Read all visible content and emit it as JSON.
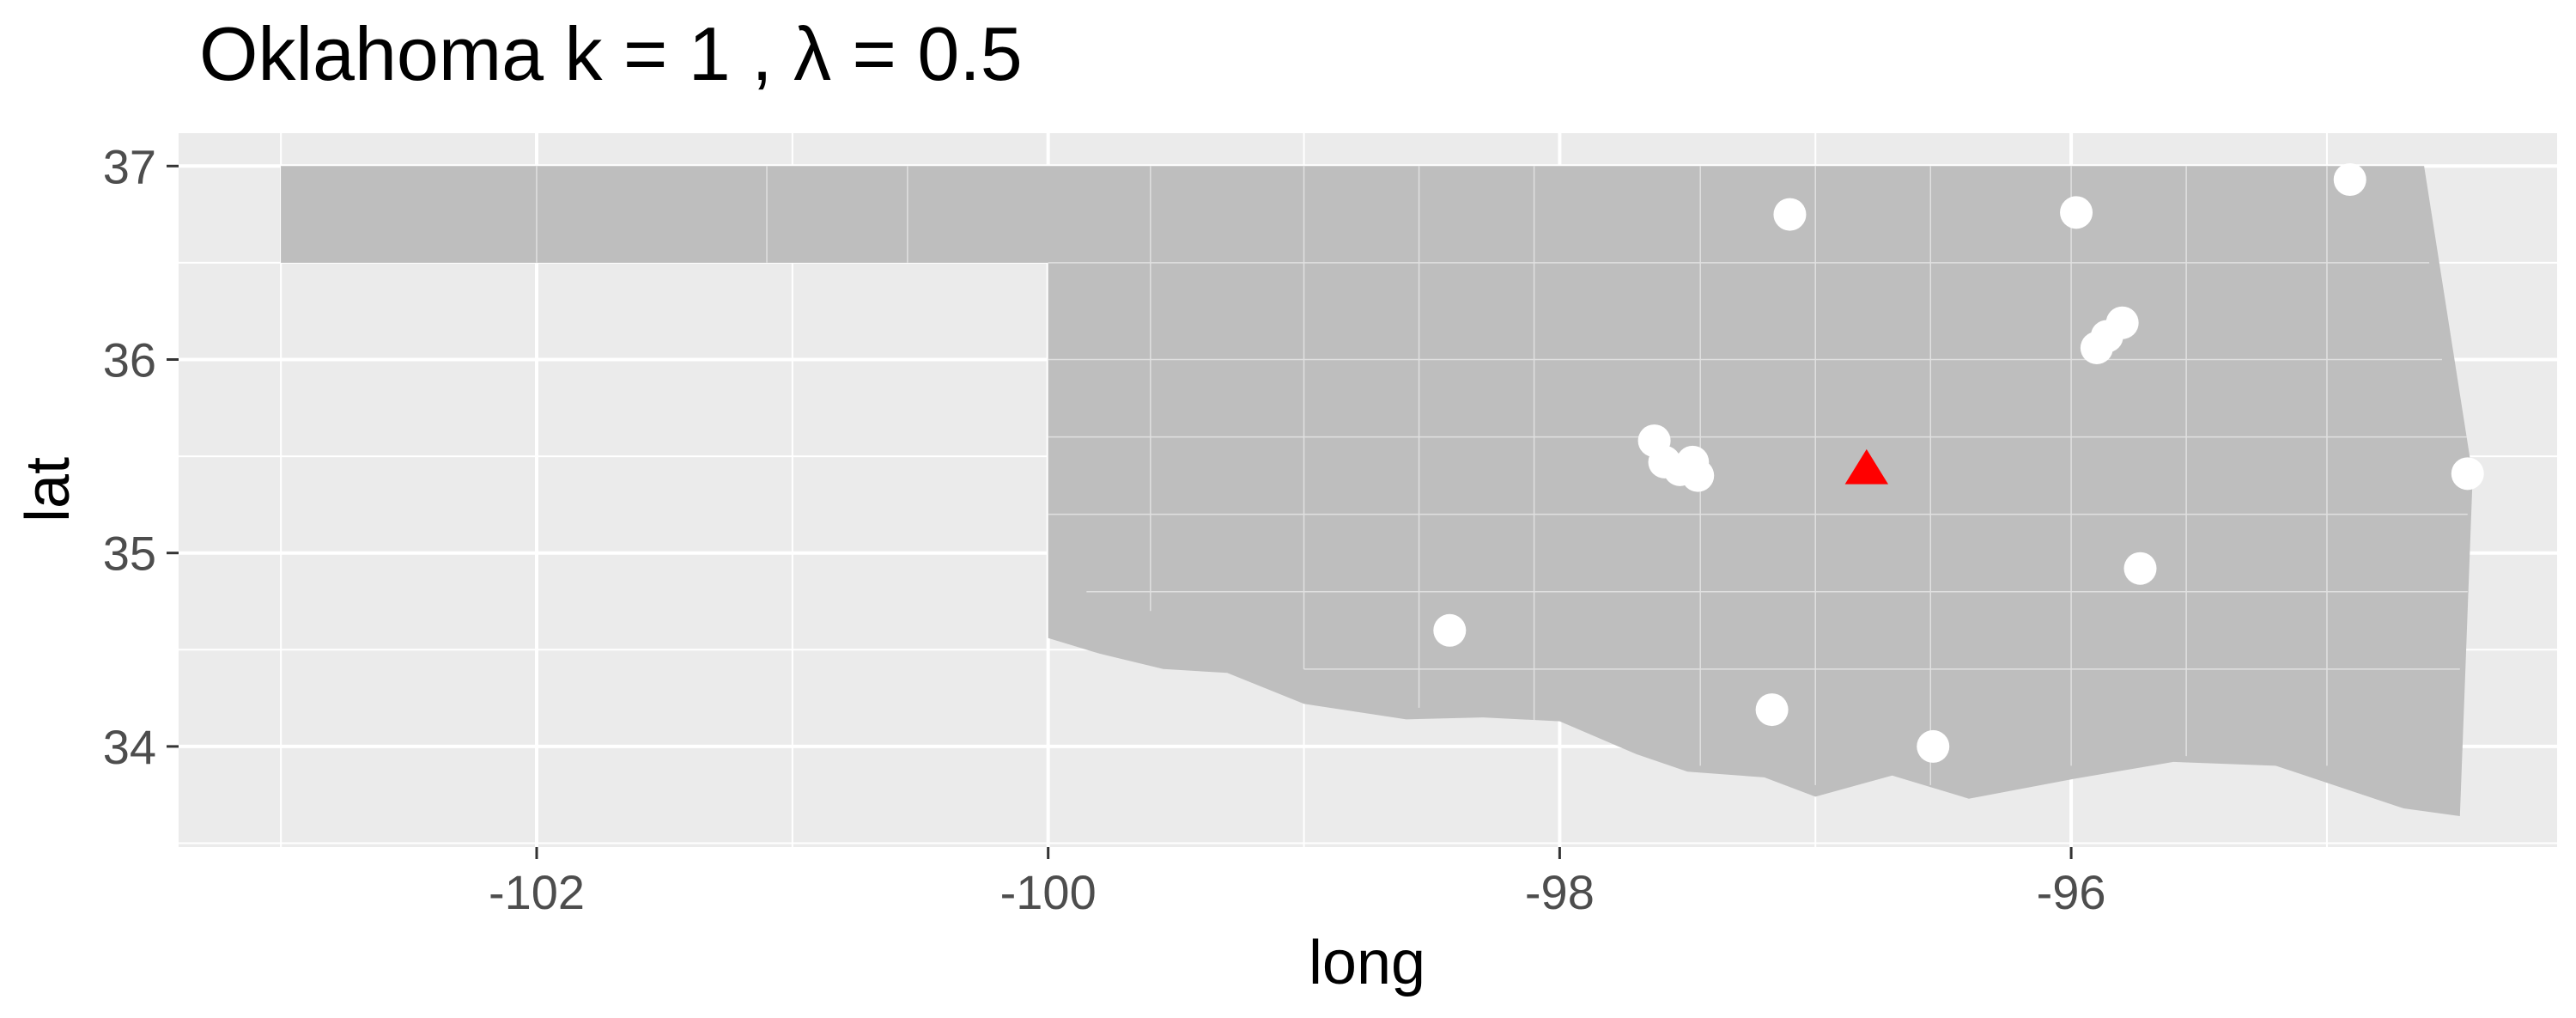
{
  "title": "Oklahoma  k =  1 ,  λ  =  0.5",
  "colors": {
    "panel_background": "#ebebeb",
    "grid_major": "#ffffff",
    "state_fill": "#bebebe",
    "county_lines": "#e0e0e0",
    "point_color": "#ffffff",
    "center_color": "#ff0000",
    "tick_color": "#333333"
  },
  "chart_data": {
    "type": "scatter",
    "title": "Oklahoma  k =  1 ,  λ  =  0.5",
    "xlabel": "long",
    "ylabel": "lat",
    "xlim": [
      -103.4,
      -94.1
    ],
    "ylim": [
      33.48,
      37.17
    ],
    "x_ticks": [
      -102,
      -100,
      -98,
      -96
    ],
    "x_tick_labels": [
      "-102",
      "-100",
      "-98",
      "-96"
    ],
    "y_ticks": [
      34,
      35,
      36,
      37
    ],
    "y_tick_labels": [
      "34",
      "35",
      "36",
      "37"
    ],
    "grid": true,
    "legend": "none",
    "series": [
      {
        "marker": "circle",
        "color": "#ffffff",
        "points": [
          {
            "x": -97.1,
            "y": 36.75
          },
          {
            "x": -95.98,
            "y": 36.76
          },
          {
            "x": -94.91,
            "y": 36.93
          },
          {
            "x": -95.8,
            "y": 36.19
          },
          {
            "x": -95.86,
            "y": 36.12
          },
          {
            "x": -95.9,
            "y": 36.06
          },
          {
            "x": -97.63,
            "y": 35.58
          },
          {
            "x": -97.59,
            "y": 35.47
          },
          {
            "x": -97.53,
            "y": 35.43
          },
          {
            "x": -97.48,
            "y": 35.47
          },
          {
            "x": -97.46,
            "y": 35.4
          },
          {
            "x": -94.45,
            "y": 35.41
          },
          {
            "x": -95.73,
            "y": 34.92
          },
          {
            "x": -98.43,
            "y": 34.6
          },
          {
            "x": -97.17,
            "y": 34.19
          },
          {
            "x": -96.54,
            "y": 34.0
          }
        ]
      },
      {
        "marker": "triangle",
        "color": "#ff0000",
        "points": [
          {
            "x": -96.8,
            "y": 35.43
          }
        ]
      }
    ]
  },
  "map": {
    "outline": [
      [
        -103.0,
        37.0
      ],
      [
        -94.62,
        37.0
      ],
      [
        -94.43,
        35.4
      ],
      [
        -94.48,
        33.64
      ],
      [
        -94.7,
        33.68
      ],
      [
        -95.2,
        33.9
      ],
      [
        -95.6,
        33.92
      ],
      [
        -96.0,
        33.83
      ],
      [
        -96.4,
        33.73
      ],
      [
        -96.7,
        33.85
      ],
      [
        -97.0,
        33.74
      ],
      [
        -97.2,
        33.84
      ],
      [
        -97.5,
        33.87
      ],
      [
        -97.7,
        33.96
      ],
      [
        -98.0,
        34.13
      ],
      [
        -98.3,
        34.15
      ],
      [
        -98.6,
        34.14
      ],
      [
        -99.0,
        34.22
      ],
      [
        -99.3,
        34.38
      ],
      [
        -99.55,
        34.4
      ],
      [
        -99.8,
        34.48
      ],
      [
        -100.0,
        34.56
      ],
      [
        -100.0,
        36.5
      ],
      [
        -103.0,
        36.5
      ]
    ],
    "county_v": [
      [
        -102.0,
        36.5,
        37.0
      ],
      [
        -101.1,
        36.5,
        37.0
      ],
      [
        -100.55,
        36.5,
        37.0
      ],
      [
        -99.6,
        34.7,
        37.0
      ],
      [
        -99.0,
        34.4,
        37.0
      ],
      [
        -98.55,
        34.2,
        37.0
      ],
      [
        -98.1,
        34.1,
        37.0
      ],
      [
        -97.45,
        33.9,
        37.0
      ],
      [
        -97.0,
        33.8,
        37.0
      ],
      [
        -96.55,
        33.8,
        37.0
      ],
      [
        -96.0,
        33.9,
        37.0
      ],
      [
        -95.55,
        33.95,
        37.0
      ],
      [
        -95.0,
        33.9,
        37.0
      ]
    ],
    "county_h": [
      [
        36.5,
        -100.0,
        -94.6
      ],
      [
        36.0,
        -100.0,
        -94.55
      ],
      [
        35.6,
        -100.0,
        -94.45
      ],
      [
        35.2,
        -100.0,
        -94.45
      ],
      [
        34.8,
        -99.85,
        -94.45
      ],
      [
        34.4,
        -99.0,
        -94.48
      ]
    ]
  }
}
